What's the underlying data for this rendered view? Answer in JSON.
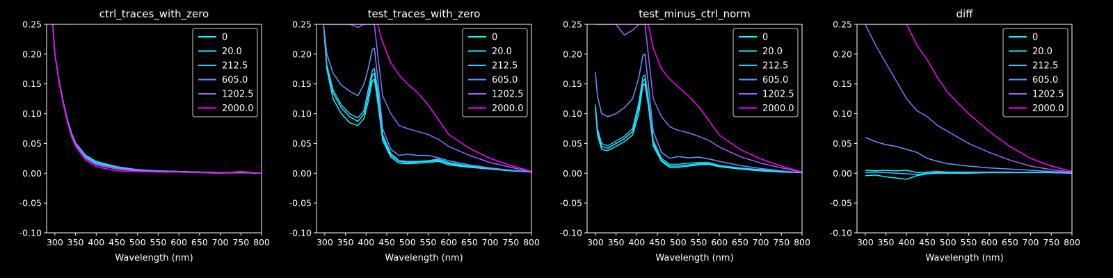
{
  "figure": {
    "background": "#000000",
    "series_colors": {
      "0": "#00ffff",
      "20.0": "#0ef1ff",
      "212.5": "#3cc4ff",
      "605.0": "#6a97ff",
      "1202.5": "#9b66ff",
      "2000.0": "#ff00ff"
    }
  },
  "chart_data": [
    {
      "type": "line",
      "title": "ctrl_traces_with_zero",
      "xlabel": "Wavelength (nm)",
      "ylabel": "",
      "xlim": [
        280,
        800
      ],
      "ylim": [
        -0.1,
        0.25
      ],
      "xticks": [
        300,
        350,
        400,
        450,
        500,
        550,
        600,
        650,
        700,
        750,
        800
      ],
      "yticks": [
        -0.1,
        -0.05,
        0.0,
        0.05,
        0.1,
        0.15,
        0.2,
        0.25
      ],
      "legend_position": "top-right",
      "x": [
        295,
        300,
        310,
        320,
        330,
        340,
        350,
        375,
        400,
        450,
        500,
        550,
        600,
        650,
        700,
        750,
        800
      ],
      "series": [
        {
          "name": "0",
          "values": [
            0.25,
            0.2,
            0.155,
            0.12,
            0.09,
            0.068,
            0.05,
            0.028,
            0.018,
            0.01,
            0.006,
            0.004,
            0.003,
            0.002,
            0.001,
            0.001,
            0.0
          ]
        },
        {
          "name": "20.0",
          "values": [
            0.25,
            0.2,
            0.154,
            0.119,
            0.089,
            0.066,
            0.049,
            0.026,
            0.016,
            0.009,
            0.005,
            0.004,
            0.003,
            0.002,
            0.001,
            0.001,
            0.0
          ]
        },
        {
          "name": "212.5",
          "values": [
            0.25,
            0.2,
            0.156,
            0.121,
            0.091,
            0.068,
            0.051,
            0.03,
            0.02,
            0.011,
            0.006,
            0.004,
            0.003,
            0.002,
            0.001,
            0.001,
            0.0
          ]
        },
        {
          "name": "605.0",
          "values": [
            0.25,
            0.2,
            0.155,
            0.12,
            0.09,
            0.067,
            0.05,
            0.027,
            0.017,
            0.009,
            0.005,
            0.004,
            0.003,
            0.002,
            0.001,
            0.001,
            0.0
          ]
        },
        {
          "name": "1202.5",
          "values": [
            0.25,
            0.2,
            0.154,
            0.119,
            0.088,
            0.065,
            0.048,
            0.025,
            0.014,
            0.007,
            0.004,
            0.003,
            0.002,
            0.001,
            0.0,
            0.001,
            0.0
          ]
        },
        {
          "name": "2000.0",
          "values": [
            0.25,
            0.2,
            0.152,
            0.117,
            0.086,
            0.062,
            0.045,
            0.022,
            0.011,
            0.004,
            0.003,
            0.002,
            0.002,
            0.001,
            0.0,
            0.003,
            0.0
          ]
        }
      ]
    },
    {
      "type": "line",
      "title": "test_traces_with_zero",
      "xlabel": "Wavelength (nm)",
      "ylabel": "",
      "xlim": [
        280,
        800
      ],
      "ylim": [
        -0.1,
        0.25
      ],
      "xticks": [
        300,
        350,
        400,
        450,
        500,
        550,
        600,
        650,
        700,
        750,
        800
      ],
      "yticks": [
        -0.1,
        -0.05,
        0.0,
        0.05,
        0.1,
        0.15,
        0.2,
        0.25
      ],
      "legend_position": "top-right",
      "x": [
        297,
        305,
        320,
        340,
        360,
        380,
        395,
        405,
        415,
        420,
        428,
        440,
        460,
        480,
        500,
        525,
        550,
        575,
        600,
        650,
        700,
        750,
        800
      ],
      "series": [
        {
          "name": "0",
          "values": [
            0.25,
            0.18,
            0.135,
            0.11,
            0.095,
            0.087,
            0.1,
            0.13,
            0.165,
            0.168,
            0.13,
            0.06,
            0.03,
            0.02,
            0.018,
            0.019,
            0.02,
            0.022,
            0.016,
            0.011,
            0.008,
            0.005,
            0.002
          ]
        },
        {
          "name": "20.0",
          "values": [
            0.25,
            0.175,
            0.125,
            0.1,
            0.085,
            0.08,
            0.092,
            0.12,
            0.155,
            0.158,
            0.12,
            0.055,
            0.027,
            0.017,
            0.016,
            0.017,
            0.018,
            0.02,
            0.014,
            0.01,
            0.007,
            0.004,
            0.002
          ]
        },
        {
          "name": "212.5",
          "values": [
            0.25,
            0.182,
            0.14,
            0.115,
            0.1,
            0.093,
            0.105,
            0.14,
            0.172,
            0.176,
            0.14,
            0.065,
            0.033,
            0.021,
            0.02,
            0.02,
            0.021,
            0.024,
            0.018,
            0.012,
            0.008,
            0.005,
            0.002
          ]
        },
        {
          "name": "605.0",
          "values": [
            0.25,
            0.2,
            0.168,
            0.148,
            0.138,
            0.13,
            0.15,
            0.175,
            0.208,
            0.21,
            0.16,
            0.075,
            0.04,
            0.03,
            0.032,
            0.03,
            0.03,
            0.026,
            0.021,
            0.014,
            0.009,
            0.005,
            0.002
          ]
        },
        {
          "name": "1202.5",
          "values": [
            0.25,
            0.25,
            0.25,
            0.25,
            0.25,
            0.245,
            0.25,
            0.25,
            0.25,
            0.25,
            0.2,
            0.13,
            0.1,
            0.08,
            0.075,
            0.07,
            0.065,
            0.057,
            0.045,
            0.03,
            0.018,
            0.01,
            0.002
          ]
        },
        {
          "name": "2000.0",
          "values": [
            0.25,
            0.25,
            0.25,
            0.25,
            0.25,
            0.25,
            0.25,
            0.25,
            0.25,
            0.25,
            0.25,
            0.22,
            0.185,
            0.165,
            0.15,
            0.135,
            0.115,
            0.09,
            0.065,
            0.042,
            0.025,
            0.013,
            0.003
          ]
        }
      ]
    },
    {
      "type": "line",
      "title": "test_minus_ctrl_norm",
      "xlabel": "Wavelength (nm)",
      "ylabel": "",
      "xlim": [
        280,
        800
      ],
      "ylim": [
        -0.1,
        0.25
      ],
      "xticks": [
        300,
        350,
        400,
        450,
        500,
        550,
        600,
        650,
        700,
        750,
        800
      ],
      "yticks": [
        -0.1,
        -0.05,
        0.0,
        0.05,
        0.1,
        0.15,
        0.2,
        0.25
      ],
      "legend_position": "top-right",
      "x": [
        300,
        305,
        315,
        330,
        350,
        370,
        390,
        405,
        415,
        420,
        428,
        440,
        460,
        480,
        500,
        525,
        550,
        575,
        600,
        650,
        700,
        750,
        800
      ],
      "series": [
        {
          "name": "0",
          "values": [
            0.115,
            0.07,
            0.045,
            0.042,
            0.05,
            0.058,
            0.07,
            0.11,
            0.155,
            0.158,
            0.12,
            0.05,
            0.022,
            0.012,
            0.012,
            0.014,
            0.016,
            0.016,
            0.012,
            0.008,
            0.005,
            0.003,
            0.001
          ]
        },
        {
          "name": "20.0",
          "values": [
            0.11,
            0.065,
            0.04,
            0.038,
            0.045,
            0.053,
            0.064,
            0.1,
            0.148,
            0.15,
            0.114,
            0.046,
            0.02,
            0.01,
            0.01,
            0.012,
            0.014,
            0.015,
            0.011,
            0.007,
            0.004,
            0.002,
            0.001
          ]
        },
        {
          "name": "212.5",
          "values": [
            0.115,
            0.075,
            0.05,
            0.046,
            0.054,
            0.062,
            0.075,
            0.118,
            0.162,
            0.165,
            0.126,
            0.055,
            0.025,
            0.015,
            0.015,
            0.017,
            0.018,
            0.018,
            0.013,
            0.009,
            0.006,
            0.003,
            0.001
          ]
        },
        {
          "name": "605.0",
          "values": [
            0.17,
            0.13,
            0.1,
            0.095,
            0.1,
            0.11,
            0.125,
            0.16,
            0.198,
            0.2,
            0.15,
            0.07,
            0.035,
            0.025,
            0.028,
            0.026,
            0.027,
            0.024,
            0.02,
            0.013,
            0.008,
            0.004,
            0.001
          ]
        },
        {
          "name": "1202.5",
          "values": [
            0.25,
            0.25,
            0.25,
            0.25,
            0.25,
            0.232,
            0.24,
            0.25,
            0.25,
            0.25,
            0.2,
            0.125,
            0.095,
            0.078,
            0.072,
            0.068,
            0.062,
            0.055,
            0.044,
            0.028,
            0.017,
            0.009,
            0.002
          ]
        },
        {
          "name": "2000.0",
          "values": [
            0.25,
            0.25,
            0.25,
            0.25,
            0.25,
            0.25,
            0.25,
            0.25,
            0.25,
            0.25,
            0.25,
            0.21,
            0.175,
            0.158,
            0.145,
            0.13,
            0.112,
            0.088,
            0.064,
            0.04,
            0.024,
            0.012,
            0.002
          ]
        }
      ]
    },
    {
      "type": "line",
      "title": "diff",
      "xlabel": "Wavelength (nm)",
      "ylabel": "",
      "xlim": [
        280,
        800
      ],
      "ylim": [
        -0.1,
        0.25
      ],
      "xticks": [
        300,
        350,
        400,
        450,
        500,
        550,
        600,
        650,
        700,
        750,
        800
      ],
      "yticks": [
        -0.1,
        -0.05,
        0.0,
        0.05,
        0.1,
        0.15,
        0.2,
        0.25
      ],
      "legend_position": "top-right",
      "x": [
        300,
        325,
        350,
        375,
        400,
        425,
        450,
        475,
        500,
        550,
        600,
        650,
        700,
        750,
        800
      ],
      "series": [
        {
          "name": "0",
          "values": [
            0.005,
            0.004,
            0.005,
            0.004,
            0.005,
            0.001,
            0.002,
            0.003,
            0.002,
            0.002,
            0.002,
            0.002,
            0.001,
            0.002,
            0.001
          ]
        },
        {
          "name": "20.0",
          "values": [
            -0.004,
            -0.003,
            -0.006,
            -0.008,
            -0.01,
            -0.004,
            -0.001,
            0.0,
            0.0,
            0.0,
            0.001,
            0.001,
            0.001,
            0.001,
            0.0
          ]
        },
        {
          "name": "212.5",
          "values": [
            0.001,
            0.002,
            0.001,
            0.0,
            -0.001,
            -0.002,
            0.0,
            0.001,
            0.001,
            0.001,
            0.001,
            0.001,
            0.002,
            0.001,
            0.0
          ]
        },
        {
          "name": "605.0",
          "values": [
            0.06,
            0.053,
            0.048,
            0.045,
            0.04,
            0.035,
            0.025,
            0.02,
            0.016,
            0.012,
            0.009,
            0.007,
            0.005,
            0.003,
            0.001
          ]
        },
        {
          "name": "1202.5",
          "values": [
            0.25,
            0.215,
            0.185,
            0.155,
            0.125,
            0.105,
            0.095,
            0.08,
            0.07,
            0.05,
            0.035,
            0.022,
            0.012,
            0.006,
            0.002
          ]
        },
        {
          "name": "2000.0",
          "values": [
            0.25,
            0.25,
            0.25,
            0.25,
            0.25,
            0.215,
            0.19,
            0.16,
            0.135,
            0.1,
            0.07,
            0.045,
            0.025,
            0.012,
            0.003
          ]
        }
      ]
    }
  ]
}
